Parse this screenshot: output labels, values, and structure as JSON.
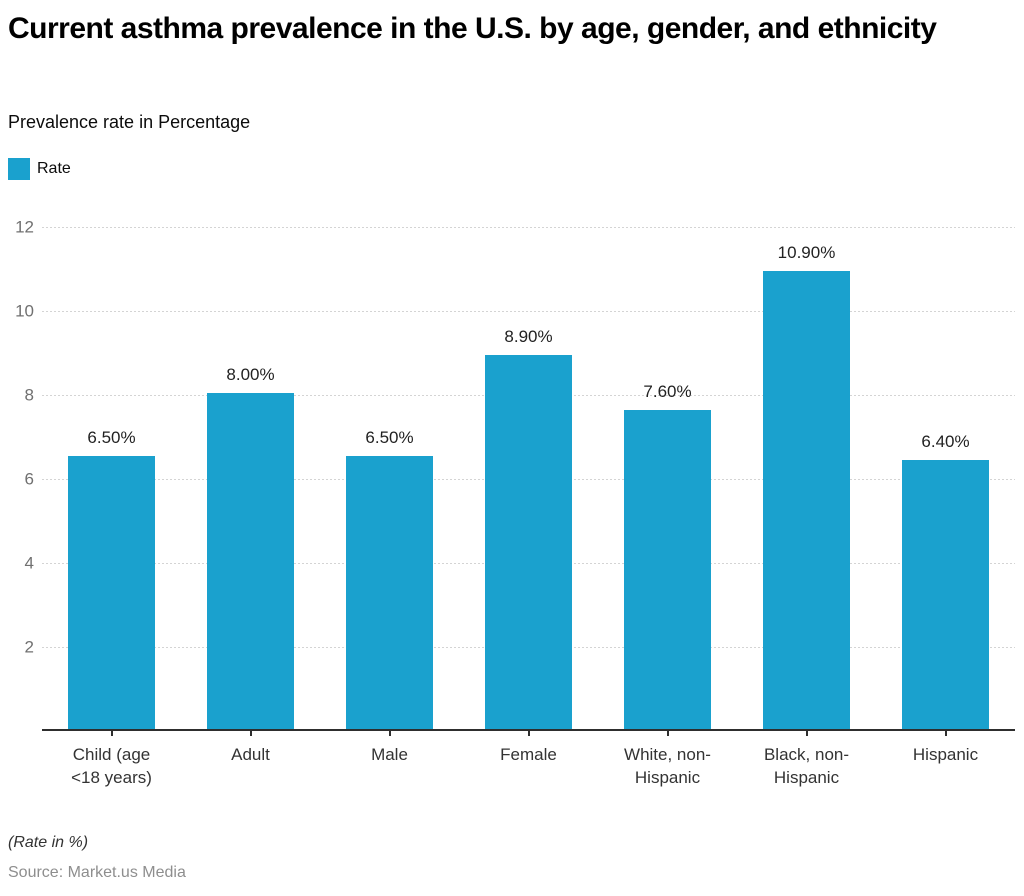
{
  "header": {
    "title": "Current asthma prevalence in the U.S. by age, gender, and ethnicity",
    "subtitle": "Prevalence rate in Percentage"
  },
  "legend": {
    "label": "Rate",
    "color": "#1aa1ce"
  },
  "chart_data": {
    "type": "bar",
    "title": "Current asthma prevalence in the U.S. by age, gender, and ethnicity",
    "series_name": "Rate",
    "categories": [
      "Child (age <18 years)",
      "Adult",
      "Male",
      "Female",
      "White, non-Hispanic",
      "Black, non-Hispanic",
      "Hispanic"
    ],
    "values": [
      6.5,
      8.0,
      6.5,
      8.9,
      7.6,
      10.9,
      6.4
    ],
    "value_labels": [
      "6.50%",
      "8.00%",
      "6.50%",
      "8.90%",
      "7.60%",
      "10.90%",
      "6.40%"
    ],
    "xlabel": "",
    "ylabel": "",
    "ylim": [
      0,
      12
    ],
    "yticks": [
      2,
      4,
      6,
      8,
      10,
      12
    ],
    "bar_color": "#1aa1ce",
    "grid": "horizontal-dotted",
    "legend_position": "top-left"
  },
  "footer": {
    "note": "(Rate in %)",
    "source": "Source: Market.us Media"
  }
}
